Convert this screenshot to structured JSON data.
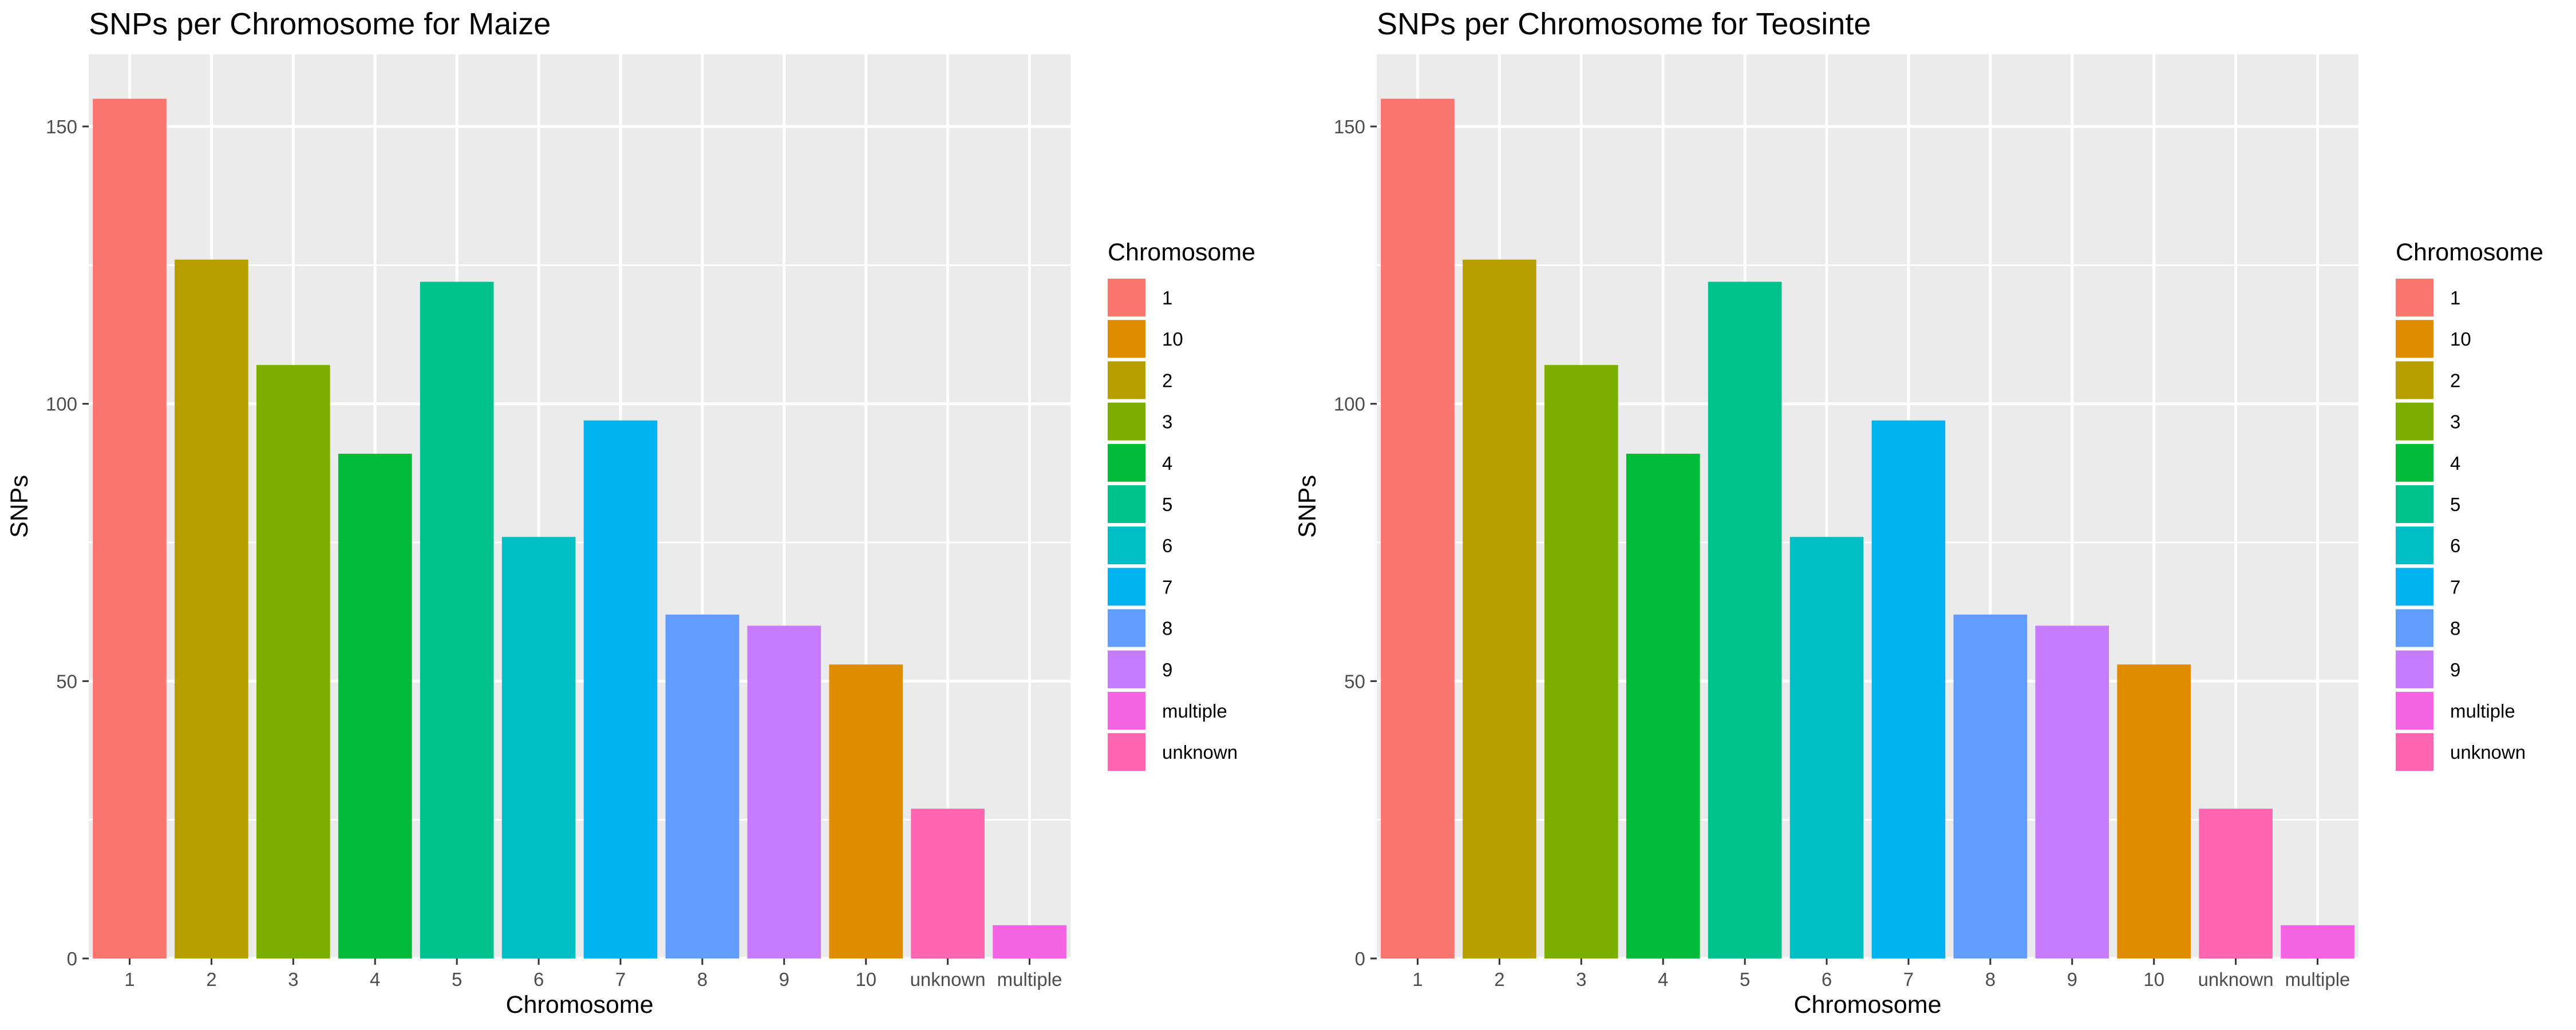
{
  "chart_data": [
    {
      "type": "bar",
      "title": "SNPs per Chromosome for Maize",
      "xlabel": "Chromosome",
      "ylabel": "SNPs",
      "categories": [
        "1",
        "2",
        "3",
        "4",
        "5",
        "6",
        "7",
        "8",
        "9",
        "10",
        "unknown",
        "multiple"
      ],
      "values": [
        155,
        126,
        107,
        91,
        122,
        76,
        97,
        62,
        60,
        53,
        27,
        6
      ],
      "ylim": [
        0,
        163
      ],
      "yticks": [
        0,
        50,
        100,
        150
      ],
      "grid": true,
      "legend": {
        "title": "Chromosome",
        "position": "right",
        "entries": [
          "1",
          "10",
          "2",
          "3",
          "4",
          "5",
          "6",
          "7",
          "8",
          "9",
          "multiple",
          "unknown"
        ]
      },
      "colors": {
        "1": "#F8766D",
        "2": "#B79F00",
        "3": "#7CAE00",
        "4": "#00BA38",
        "5": "#00C08B",
        "6": "#00BFC4",
        "7": "#00B4F0",
        "8": "#619CFF",
        "9": "#C77CFF",
        "10": "#DE8C00",
        "multiple": "#F564E3",
        "unknown": "#FF64B0"
      }
    },
    {
      "type": "bar",
      "title": "SNPs per Chromosome for Teosinte",
      "xlabel": "Chromosome",
      "ylabel": "SNPs",
      "categories": [
        "1",
        "2",
        "3",
        "4",
        "5",
        "6",
        "7",
        "8",
        "9",
        "10",
        "unknown",
        "multiple"
      ],
      "values": [
        155,
        126,
        107,
        91,
        122,
        76,
        97,
        62,
        60,
        53,
        27,
        6
      ],
      "ylim": [
        0,
        163
      ],
      "yticks": [
        0,
        50,
        100,
        150
      ],
      "grid": true,
      "legend": {
        "title": "Chromosome",
        "position": "right",
        "entries": [
          "1",
          "10",
          "2",
          "3",
          "4",
          "5",
          "6",
          "7",
          "8",
          "9",
          "multiple",
          "unknown"
        ]
      },
      "colors": {
        "1": "#F8766D",
        "2": "#B79F00",
        "3": "#7CAE00",
        "4": "#00BA38",
        "5": "#00C08B",
        "6": "#00BFC4",
        "7": "#00B4F0",
        "8": "#619CFF",
        "9": "#C77CFF",
        "10": "#DE8C00",
        "multiple": "#F564E3",
        "unknown": "#FF64B0"
      }
    }
  ]
}
